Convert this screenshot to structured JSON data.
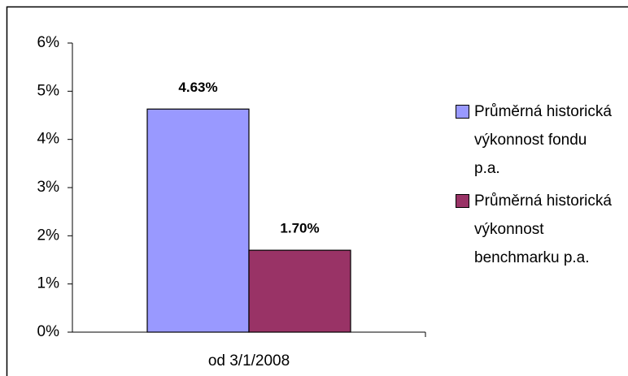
{
  "chart_data": {
    "type": "bar",
    "categories": [
      "od 3/1/2008"
    ],
    "series": [
      {
        "name": "Průměrná historická výkonnost fondu p.a.",
        "color": "#9999ff",
        "values": [
          4.63
        ],
        "value_labels": [
          "4.63%"
        ]
      },
      {
        "name": "Průměrná historická výkonnost benchmarku p.a.",
        "color": "#993366",
        "values": [
          1.7
        ],
        "value_labels": [
          "1.70%"
        ]
      }
    ],
    "ylim": [
      0,
      6
    ],
    "yticks": [
      {
        "value": 0,
        "label": "0%"
      },
      {
        "value": 1,
        "label": "1%"
      },
      {
        "value": 2,
        "label": "2%"
      },
      {
        "value": 3,
        "label": "3%"
      },
      {
        "value": 4,
        "label": "4%"
      },
      {
        "value": 5,
        "label": "5%"
      },
      {
        "value": 6,
        "label": "6%"
      }
    ],
    "legend": "right"
  }
}
